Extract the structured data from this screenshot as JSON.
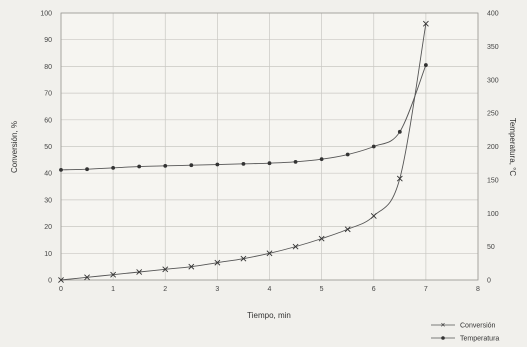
{
  "chart_data": {
    "type": "line",
    "xlabel": "Tiempo, min",
    "ylabel_left": "Conversión, %",
    "ylabel_right": "Temperatura, °C",
    "xlim": [
      0,
      8
    ],
    "ylim_left": [
      0,
      100
    ],
    "ylim_right": [
      0,
      400
    ],
    "x_ticks": [
      0,
      1,
      2,
      3,
      4,
      5,
      6,
      7,
      8
    ],
    "y_left_ticks": [
      0,
      10,
      20,
      30,
      40,
      50,
      60,
      70,
      80,
      90,
      100
    ],
    "y_right_ticks": [
      0,
      50,
      100,
      150,
      200,
      250,
      300,
      350,
      400
    ],
    "grid": true,
    "legend_position": "bottom-right",
    "series": [
      {
        "name": "Conversión",
        "axis": "left",
        "marker": "x",
        "x": [
          0,
          0.5,
          1,
          1.5,
          2,
          2.5,
          3,
          3.5,
          4,
          4.5,
          5,
          5.5,
          6,
          6.5,
          7
        ],
        "y": [
          0,
          1,
          2,
          3,
          4,
          5,
          6.5,
          8,
          10,
          12.5,
          15.5,
          19,
          24,
          38,
          96
        ]
      },
      {
        "name": "Temperatura",
        "axis": "right",
        "marker": "dot",
        "x": [
          0,
          0.5,
          1,
          1.5,
          2,
          2.5,
          3,
          3.5,
          4,
          4.5,
          5,
          5.5,
          6,
          6.5,
          7
        ],
        "y": [
          165,
          166,
          168,
          170,
          171,
          172,
          173,
          174,
          175,
          177,
          181,
          188,
          200,
          222,
          322
        ]
      }
    ]
  }
}
